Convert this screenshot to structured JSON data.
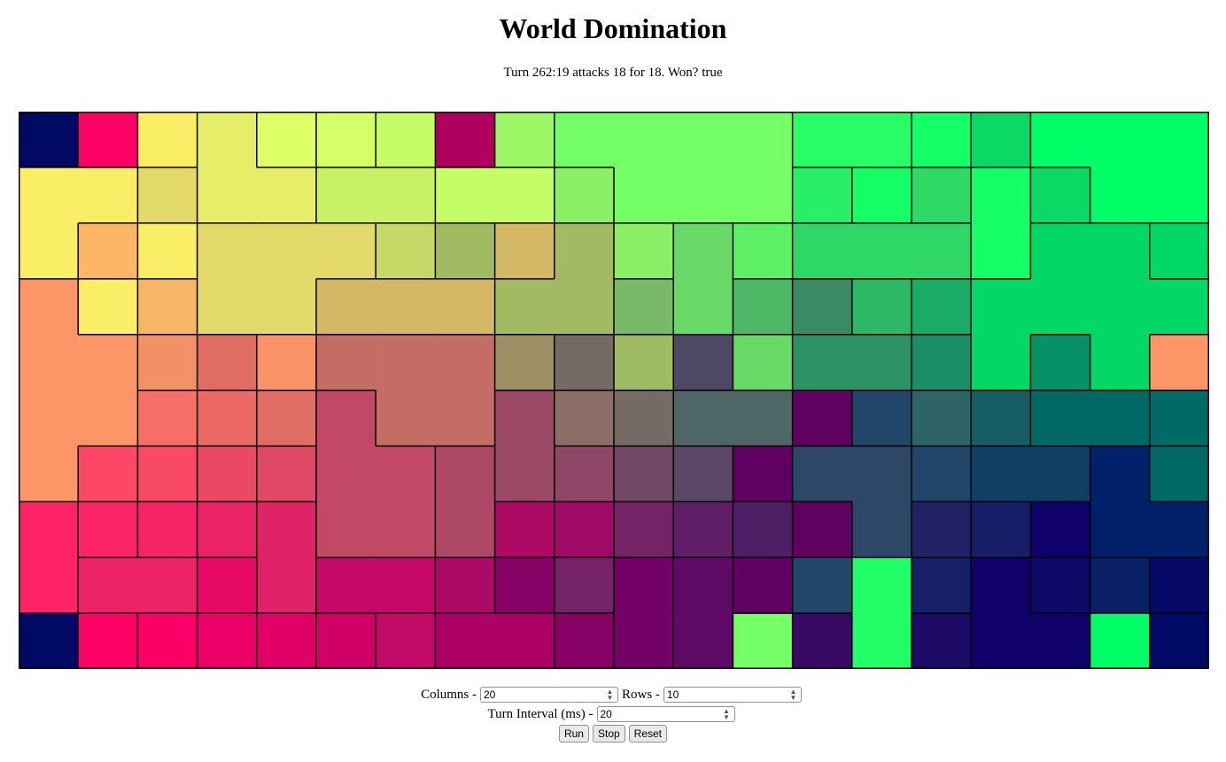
{
  "title": "World Domination",
  "status": "Turn 262:19 attacks 18 for 18. Won? true",
  "board": {
    "columns": 20,
    "rows": 10,
    "cell_colors": [
      [
        "#000a64",
        "#ff0064",
        "#fbee67",
        "#e6ed68",
        "#dfff66",
        "#d5ff66",
        "#c5fd66",
        "#b0005f",
        "#9cf866",
        "#74ff66",
        "#74ff66",
        "#74ff66",
        "#74ff66",
        "#28ff66",
        "#28ff66",
        "#15ff66",
        "#0bd966",
        "#00ff66",
        "#00ff66",
        "#00ff66"
      ],
      [
        "#fbee67",
        "#fbee67",
        "#e3d86a",
        "#e6ed68",
        "#e6ed68",
        "#c8f266",
        "#c8f266",
        "#c5fd66",
        "#c5fd66",
        "#8cf066",
        "#74ff66",
        "#74ff66",
        "#74ff66",
        "#28ef66",
        "#15ff66",
        "#2ed966",
        "#15ff66",
        "#0bd966",
        "#00ff66",
        "#00ff66"
      ],
      [
        "#fbee67",
        "#fdb666",
        "#fbee67",
        "#e3d86a",
        "#e3d86a",
        "#e3d86a",
        "#c6d866",
        "#a2bb63",
        "#d4b865",
        "#a2bb63",
        "#8cf066",
        "#68d866",
        "#5df066",
        "#2fd866",
        "#2fd866",
        "#2fd866",
        "#15ff66",
        "#03d866",
        "#03d866",
        "#00d866"
      ],
      [
        "#fe9566",
        "#fbee67",
        "#f7b666",
        "#e3d86a",
        "#e3d86a",
        "#d4b865",
        "#d4b865",
        "#d4b865",
        "#a2bb63",
        "#a2bb63",
        "#78b866",
        "#68d866",
        "#4eb866",
        "#3b8a66",
        "#2db866",
        "#1aac66",
        "#03d866",
        "#03d866",
        "#03d866",
        "#03d866"
      ],
      [
        "#fe9566",
        "#fe9566",
        "#f39166",
        "#e06d64",
        "#f79366",
        "#c36d65",
        "#c36d65",
        "#c36d65",
        "#9c8f64",
        "#756b64",
        "#9ebb63",
        "#4e4766",
        "#68d866",
        "#2c9266",
        "#2c9266",
        "#1a8e66",
        "#03d866",
        "#089066",
        "#03d866",
        "#fe9566"
      ],
      [
        "#fe9566",
        "#fe9566",
        "#f56f66",
        "#ea6964",
        "#e06d64",
        "#c24866",
        "#c36d65",
        "#c36d65",
        "#9b4766",
        "#8b6e65",
        "#756b64",
        "#4f6766",
        "#4f6766",
        "#600060",
        "#21466a",
        "#2e6466",
        "#165d66",
        "#006966",
        "#006966",
        "#006a66"
      ],
      [
        "#fe9566",
        "#fc4866",
        "#f84966",
        "#ea4966",
        "#df4966",
        "#c24866",
        "#c24866",
        "#ad4766",
        "#9b4766",
        "#8e4766",
        "#734766",
        "#5a4766",
        "#600060",
        "#2d4866",
        "#2d4866",
        "#21466a",
        "#103f66",
        "#103f66",
        "#00206a",
        "#006966"
      ],
      [
        "#fe2366",
        "#fc2366",
        "#f62366",
        "#ea2366",
        "#df2366",
        "#c24866",
        "#c24866",
        "#ad4766",
        "#ad0a66",
        "#9e0a66",
        "#732366",
        "#5f1d66",
        "#4f1f66",
        "#600060",
        "#2d4866",
        "#212266",
        "#151e66",
        "#10006a",
        "#00206a",
        "#00206a"
      ],
      [
        "#fe2366",
        "#ec2366",
        "#ec2366",
        "#e60a66",
        "#df2366",
        "#c40a66",
        "#c40a66",
        "#ad0a66",
        "#860066",
        "#732366",
        "#720066",
        "#5e0a66",
        "#600060",
        "#21466a",
        "#22ff66",
        "#152066",
        "#10006a",
        "#0c0a66",
        "#0a2066",
        "#060a66"
      ],
      [
        "#000a64",
        "#ff0064",
        "#fa0066",
        "#ea0066",
        "#e00066",
        "#d00066",
        "#c30a66",
        "#ad0066",
        "#ad0066",
        "#860066",
        "#720066",
        "#5e0a66",
        "#74ff66",
        "#380a66",
        "#22ff66",
        "#1d0a66",
        "#10006a",
        "#10006a",
        "#00ff66",
        "#000a64"
      ]
    ]
  },
  "controls": {
    "columns_label": "Columns -",
    "columns_value": "20",
    "rows_label": "Rows -",
    "rows_value": "10",
    "interval_label": "Turn Interval (ms) -",
    "interval_value": "20",
    "run_label": "Run",
    "stop_label": "Stop",
    "reset_label": "Reset"
  }
}
